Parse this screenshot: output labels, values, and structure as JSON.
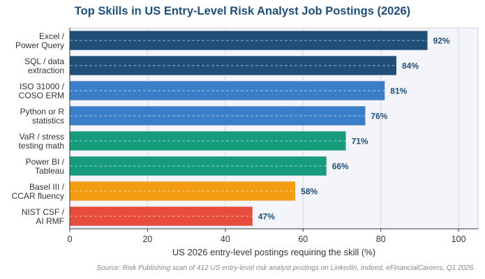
{
  "chart_data": {
    "type": "bar",
    "orientation": "horizontal",
    "title": "Top Skills in US Entry-Level Risk Analyst Job Postings (2026)",
    "xlabel": "US 2026 entry-level postings requiring the skill (%)",
    "ylabel": "",
    "xlim": [
      0,
      105
    ],
    "xticks": [
      0,
      20,
      40,
      60,
      80,
      100
    ],
    "grid": true,
    "categories": [
      [
        "Excel /",
        "Power Query"
      ],
      [
        "SQL / data",
        "extraction"
      ],
      [
        "ISO 31000 /",
        "COSO ERM"
      ],
      [
        "Python or R",
        "statistics"
      ],
      [
        "VaR / stress",
        "testing math"
      ],
      [
        "Power BI /",
        "Tableau"
      ],
      [
        "Basel III /",
        "CCAR fluency"
      ],
      [
        "NIST CSF /",
        "AI RMF"
      ]
    ],
    "values": [
      92,
      84,
      81,
      76,
      71,
      66,
      58,
      47
    ],
    "value_labels": [
      "92%",
      "84%",
      "81%",
      "76%",
      "71%",
      "66%",
      "58%",
      "47%"
    ],
    "bar_colors": [
      "#1f4e79",
      "#1f4e79",
      "#3a7dc8",
      "#3a7dc8",
      "#169b7c",
      "#169b7c",
      "#f39c12",
      "#e74c3c"
    ],
    "source": "Source: Risk Publishing scan of 412 US entry-level risk analyst postings on LinkedIn, Indeed, eFinancialCareers, Q1 2026."
  },
  "colors": {
    "title": "#1f4e79",
    "value_label": "#1f4e79",
    "plot_bg": "#f4f5fa",
    "grid": "#d8d8de",
    "axis": "#333333",
    "tick_text": "#333333"
  }
}
